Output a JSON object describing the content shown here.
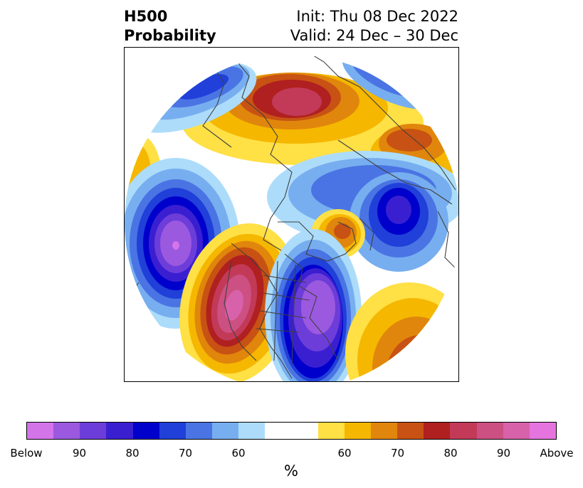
{
  "title": {
    "left_line1": "H500",
    "left_line2": "Probability",
    "right_line1": "Init: Thu 08 Dec 2022",
    "right_line2": "Valid: 24 Dec – 30 Dec"
  },
  "colorbar": {
    "below_colors": [
      "#d474e9",
      "#9b59e0",
      "#6d3dd9",
      "#3a1fd1",
      "#0000cc",
      "#2040d9",
      "#4a74e3",
      "#77aef0",
      "#acdcfa"
    ],
    "neutral_color": "#ffffff",
    "above_colors": [
      "#ffe045",
      "#f5b700",
      "#e0860c",
      "#c85213",
      "#b02020",
      "#c23a58",
      "#cc5082",
      "#d862aa",
      "#e674de"
    ],
    "tick_labels": [
      "Below",
      "90",
      "80",
      "70",
      "60",
      "60",
      "70",
      "80",
      "90",
      "Above"
    ],
    "unit": "%"
  }
}
